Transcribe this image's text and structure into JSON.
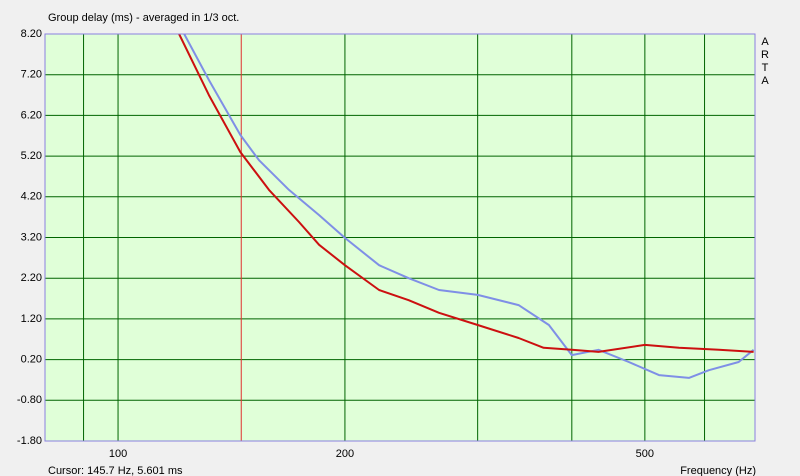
{
  "chart_data": {
    "type": "line",
    "title": "Group delay (ms) - averaged in 1/3 oct.",
    "brand": [
      "A",
      "R",
      "T",
      "A"
    ],
    "xlabel": "Frequency (Hz)",
    "log_x": true,
    "grid": true,
    "background": "#e0ffd8",
    "grid_color": "#006400",
    "frame_color": "#8a7fe0",
    "xlim": [
      80,
      700
    ],
    "xticks": [
      {
        "value": 90,
        "label": null
      },
      100,
      200,
      {
        "value": 300,
        "label": null
      },
      {
        "value": 400,
        "label": null
      },
      500,
      {
        "value": 600,
        "label": null
      }
    ],
    "ylim": [
      -1.8,
      8.2
    ],
    "yticks": [
      {
        "value": 8.2,
        "label": "8.20"
      },
      {
        "value": 7.2,
        "label": "7.20"
      },
      {
        "value": 6.2,
        "label": "6.20"
      },
      {
        "value": 5.2,
        "label": "5.20"
      },
      {
        "value": 4.2,
        "label": "4.20"
      },
      {
        "value": 3.2,
        "label": "3.20"
      },
      {
        "value": 2.2,
        "label": "2.20"
      },
      {
        "value": 1.2,
        "label": "1.20"
      },
      {
        "value": 0.2,
        "label": "0.20"
      },
      {
        "value": -0.8,
        "label": "-0.80"
      },
      {
        "value": -1.8,
        "label": "-1.80"
      }
    ],
    "cursor": {
      "x": 145.7,
      "color": "#e03030",
      "label": "Cursor: 145.7 Hz, 5.601 ms"
    },
    "series": [
      {
        "color": "#7f8fe6",
        "x": [
          122.4,
          132,
          145.3,
          153.8,
          168.6,
          184.8,
          200,
          222,
          243,
          266.6,
          300,
          340,
          373,
          400,
          434,
          476,
          522,
          572,
          608,
          666,
          697
        ],
        "values": [
          8.2,
          7.07,
          5.72,
          5.1,
          4.37,
          3.75,
          3.19,
          2.52,
          2.2,
          1.91,
          1.79,
          1.54,
          1.05,
          0.31,
          0.44,
          0.14,
          -0.18,
          -0.25,
          -0.06,
          0.14,
          0.44
        ]
      },
      {
        "color": "#cc1010",
        "x": [
          120.5,
          132,
          145.3,
          158.6,
          173.8,
          184.8,
          200,
          222,
          243,
          266.6,
          300,
          340,
          367,
          400,
          434,
          500,
          555,
          627,
          697
        ],
        "values": [
          8.2,
          6.7,
          5.3,
          4.37,
          3.58,
          3.02,
          2.52,
          1.91,
          1.66,
          1.35,
          1.05,
          0.73,
          0.49,
          0.44,
          0.39,
          0.56,
          0.49,
          0.44,
          0.39
        ]
      }
    ]
  }
}
